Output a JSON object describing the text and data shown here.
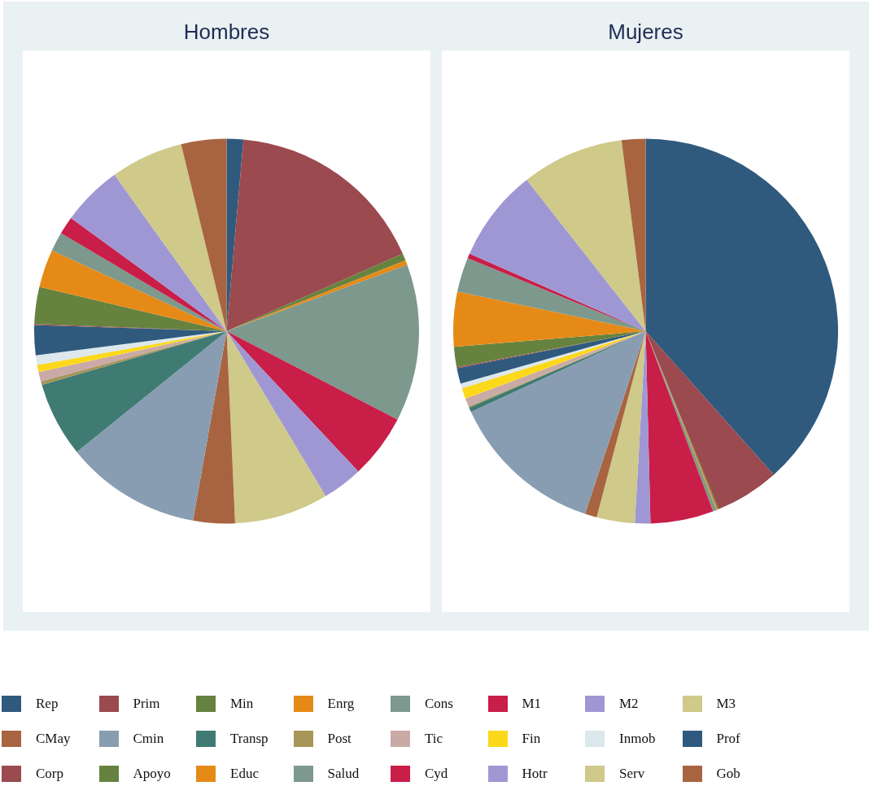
{
  "chart_data": [
    {
      "type": "pie",
      "title": "Hombres",
      "legend": "bottom",
      "categories": [
        "Rep",
        "Prim",
        "Min",
        "Enrg",
        "Cons",
        "M1",
        "M2",
        "M3",
        "CMay",
        "Cmin",
        "Transp",
        "Post",
        "Tic",
        "Fin",
        "Inmob",
        "Prof",
        "Corp",
        "Apoyo",
        "Educ",
        "Salud",
        "Cyd",
        "Hotr",
        "Serv",
        "Gob"
      ],
      "values": [
        1.4,
        17.0,
        0.6,
        0.4,
        13.2,
        5.4,
        3.4,
        7.9,
        3.5,
        11.4,
        6.3,
        0.3,
        0.8,
        0.6,
        0.8,
        2.5,
        0.1,
        3.1,
        3.2,
        1.6,
        1.5,
        5.1,
        6.1,
        3.8
      ],
      "colors": [
        "#2f5a7e",
        "#9b4a4f",
        "#66823f",
        "#e68a17",
        "#7d988d",
        "#c81e48",
        "#9f97d4",
        "#cfc98a",
        "#a86440",
        "#889db2",
        "#3f7b72",
        "#a89558",
        "#c9aaa6",
        "#fcd81b",
        "#dce8ec",
        "#2f5a7e",
        "#9b4a4f",
        "#66823f",
        "#e68a17",
        "#7d988d",
        "#c81e48",
        "#9f97d4",
        "#cfc98a",
        "#a86440"
      ]
    },
    {
      "type": "pie",
      "title": "Mujeres",
      "categories": [
        null,
        null,
        null,
        null,
        null,
        null,
        null,
        null,
        null,
        null,
        null,
        null,
        null,
        null,
        null,
        null,
        null,
        null,
        null,
        null,
        null,
        null,
        null,
        null
      ],
      "values": [
        38.4,
        5.4,
        0.1,
        0.1,
        0.3,
        5.3,
        1.3,
        3.2,
        1.0,
        13.0,
        0.4,
        0.1,
        0.7,
        0.9,
        0.4,
        1.3,
        0.1,
        1.7,
        4.6,
        2.9,
        0.4,
        7.8,
        8.6,
        2.0
      ],
      "colors": [
        "#2f5a7e",
        "#9b4a4f",
        "#66823f",
        "#e68a17",
        "#7d988d",
        "#c81e48",
        "#9f97d4",
        "#cfc98a",
        "#a86440",
        "#889db2",
        "#3f7b72",
        "#a89558",
        "#c9aaa6",
        "#fcd81b",
        "#dce8ec",
        "#2f5a7e",
        "#9b4a4f",
        "#66823f",
        "#e68a17",
        "#7d988d",
        "#c81e48",
        "#9f97d4",
        "#cfc98a",
        "#a86440"
      ]
    }
  ]
}
